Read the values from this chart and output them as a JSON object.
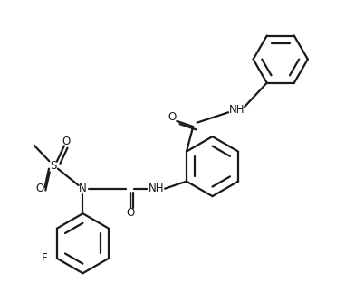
{
  "bg_color": "#ffffff",
  "line_color": "#1a1a1a",
  "lw": 1.6,
  "fig_width": 3.92,
  "fig_height": 3.33,
  "dpi": 100,
  "xlim": [
    -1.0,
    9.5
  ],
  "ylim": [
    -0.5,
    8.5
  ]
}
